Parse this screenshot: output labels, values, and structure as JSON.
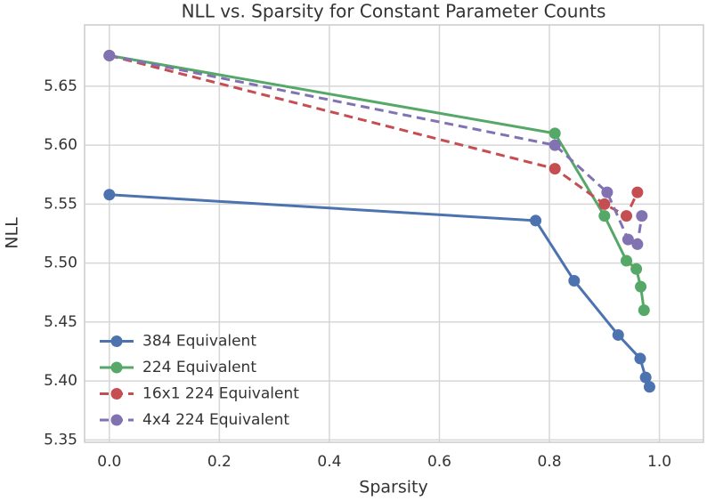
{
  "chart_data": {
    "type": "line",
    "title": "NLL vs. Sparsity for Constant Parameter Counts",
    "x_label": "Sparsity",
    "y_label": "NLL",
    "xlim": [
      -0.045,
      1.08
    ],
    "ylim": [
      5.348,
      5.702
    ],
    "xticks": [
      {
        "value": 0,
        "label": "0.0"
      },
      0.2,
      0.4,
      0.6,
      0.8,
      {
        "value": 1,
        "label": "1.0"
      }
    ],
    "yticks": [
      {
        "value": 5.35,
        "label": "5.35"
      },
      {
        "value": 5.4,
        "label": "5.40"
      },
      5.45,
      {
        "value": 5.5,
        "label": "5.50"
      },
      5.55,
      {
        "value": 5.6,
        "label": "5.60"
      },
      5.65
    ],
    "grid": true,
    "legend": "lower left",
    "series": [
      {
        "name": "384 Equivalent",
        "color": "#4c72b0",
        "linestyle": "solid",
        "x": [
          0,
          0.775,
          0.845,
          0.925,
          0.965,
          0.975,
          0.982
        ],
        "values": [
          5.558,
          5.536,
          5.485,
          5.439,
          5.419,
          5.403,
          5.395
        ]
      },
      {
        "name": "224 Equivalent",
        "color": "#55a868",
        "linestyle": "solid",
        "x": [
          0,
          0.81,
          0.9,
          0.94,
          0.958,
          0.966,
          0.972
        ],
        "values": [
          5.676,
          5.61,
          5.54,
          5.502,
          5.495,
          5.48,
          5.46
        ]
      },
      {
        "name": "16x1 224 Equivalent",
        "color": "#c44e52",
        "linestyle": "dashed",
        "x": [
          0,
          0.81,
          0.9,
          0.94,
          0.96
        ],
        "values": [
          5.676,
          5.58,
          5.55,
          5.54,
          5.56
        ]
      },
      {
        "name": "4x4 224 Equivalent",
        "color": "#8172b2",
        "linestyle": "dashed",
        "x": [
          0,
          0.81,
          0.905,
          0.943,
          0.96,
          0.968
        ],
        "values": [
          5.676,
          5.6,
          5.56,
          5.52,
          5.516,
          5.54
        ]
      }
    ]
  }
}
